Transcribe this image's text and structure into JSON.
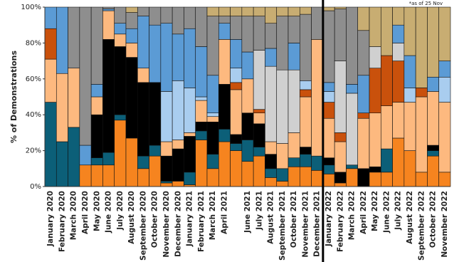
{
  "chart_data": {
    "type": "bar",
    "stacked": true,
    "ylabel": "% of Demonstrations",
    "annotation": "*as of 25 Nov",
    "categories": [
      "January 2020",
      "February 2020",
      "March 2020",
      "April 2020",
      "May 2020",
      "June 2020",
      "July 2020",
      "August 2020",
      "September 2020",
      "October 2020",
      "November 2020",
      "December 2020",
      "January 2021",
      "February 2021",
      "March 2021",
      "April 2021",
      null,
      "June 2021",
      "July 2021",
      "August 2021",
      "September 2021",
      "October 2021",
      "November 2021",
      "December 2021",
      "January 2022",
      "February 2022",
      "March 2022",
      "April 2022",
      "May 2022",
      "June 2022",
      "July 2022",
      "August 2022",
      "September 2022",
      "October 2022",
      "November 2022"
    ],
    "ylim": [
      0,
      100
    ],
    "yticks": [
      {
        "value": 0,
        "label": "0%"
      },
      {
        "value": 20,
        "label": "20%"
      },
      {
        "value": 40,
        "label": "40%"
      },
      {
        "value": 60,
        "label": "60%"
      },
      {
        "value": 80,
        "label": "80%"
      },
      {
        "value": 100,
        "label": "100%"
      }
    ],
    "series": [
      {
        "color": "#f6841f",
        "values": [
          0,
          0,
          0,
          12,
          12,
          12,
          37,
          27,
          10,
          17,
          2,
          3,
          1,
          26,
          10,
          25,
          20,
          14,
          17,
          5,
          3,
          11,
          11,
          9,
          7,
          2,
          10,
          0,
          8,
          8,
          27,
          20,
          8,
          17,
          8
        ]
      },
      {
        "color": "#0c5f78",
        "values": [
          47,
          25,
          33,
          0,
          4,
          7,
          3,
          0,
          7,
          6,
          1,
          0,
          7,
          5,
          8,
          7,
          4,
          12,
          5,
          5,
          7,
          5,
          7,
          8,
          5,
          0,
          2,
          0,
          0,
          13,
          0,
          0,
          0,
          3,
          0
        ]
      },
      {
        "color": "#000000",
        "values": [
          0,
          0,
          0,
          0,
          24,
          63,
          38,
          45,
          41,
          35,
          14,
          18,
          20,
          5,
          18,
          25,
          5,
          15,
          13,
          8,
          0,
          0,
          4,
          0,
          4,
          6,
          0,
          10,
          3,
          0,
          0,
          0,
          0,
          3,
          0
        ]
      },
      {
        "color": "#fdb97f",
        "values": [
          24,
          38,
          33,
          0,
          10,
          16,
          7,
          8,
          8,
          0,
          8,
          5,
          2,
          12,
          3,
          25,
          25,
          19,
          6,
          7,
          14,
          14,
          28,
          65,
          22,
          17,
          0,
          28,
          30,
          24,
          20,
          27,
          42,
          30,
          39
        ]
      },
      {
        "color": "#c9510c",
        "values": [
          17,
          0,
          0,
          0,
          0,
          0,
          0,
          0,
          0,
          0,
          0,
          0,
          0,
          0,
          0,
          0,
          4,
          0,
          2,
          0,
          0,
          0,
          4,
          0,
          9,
          5,
          0,
          3,
          25,
          28,
          23,
          0,
          5,
          0,
          0
        ]
      },
      {
        "color": "#d0d0d0",
        "values": [
          0,
          0,
          0,
          0,
          0,
          0,
          0,
          0,
          0,
          0,
          0,
          0,
          0,
          0,
          0,
          0,
          0,
          0,
          33,
          42,
          41,
          35,
          0,
          0,
          0,
          40,
          40,
          0,
          12,
          0,
          10,
          0,
          0,
          0,
          0
        ]
      },
      {
        "color": "#a9cdef",
        "values": [
          0,
          0,
          0,
          0,
          0,
          0,
          0,
          0,
          0,
          0,
          28,
          33,
          25,
          2,
          2,
          0,
          8,
          0,
          0,
          0,
          0,
          0,
          5,
          0,
          6,
          0,
          0,
          0,
          0,
          0,
          0,
          8,
          0,
          0,
          14
        ]
      },
      {
        "color": "#5b9bd5",
        "values": [
          12,
          37,
          0,
          11,
          7,
          1,
          6,
          8,
          29,
          32,
          38,
          26,
          33,
          28,
          21,
          9,
          16,
          15,
          0,
          10,
          0,
          15,
          0,
          0,
          5,
          0,
          5,
          21,
          0,
          0,
          10,
          18,
          0,
          8,
          9
        ]
      },
      {
        "color": "#8e8e8e",
        "values": [
          0,
          0,
          34,
          77,
          43,
          1,
          9,
          9,
          5,
          10,
          9,
          15,
          12,
          22,
          33,
          4,
          13,
          20,
          19,
          14,
          30,
          15,
          37,
          18,
          40,
          29,
          43,
          25,
          0,
          0,
          0,
          0,
          0,
          0,
          0
        ]
      },
      {
        "color": "#c8ad72",
        "values": [
          0,
          0,
          0,
          0,
          0,
          0,
          0,
          3,
          0,
          0,
          0,
          0,
          0,
          0,
          5,
          5,
          5,
          5,
          5,
          9,
          5,
          5,
          4,
          0,
          2,
          1,
          0,
          13,
          22,
          27,
          10,
          27,
          45,
          39,
          30
        ]
      }
    ]
  }
}
